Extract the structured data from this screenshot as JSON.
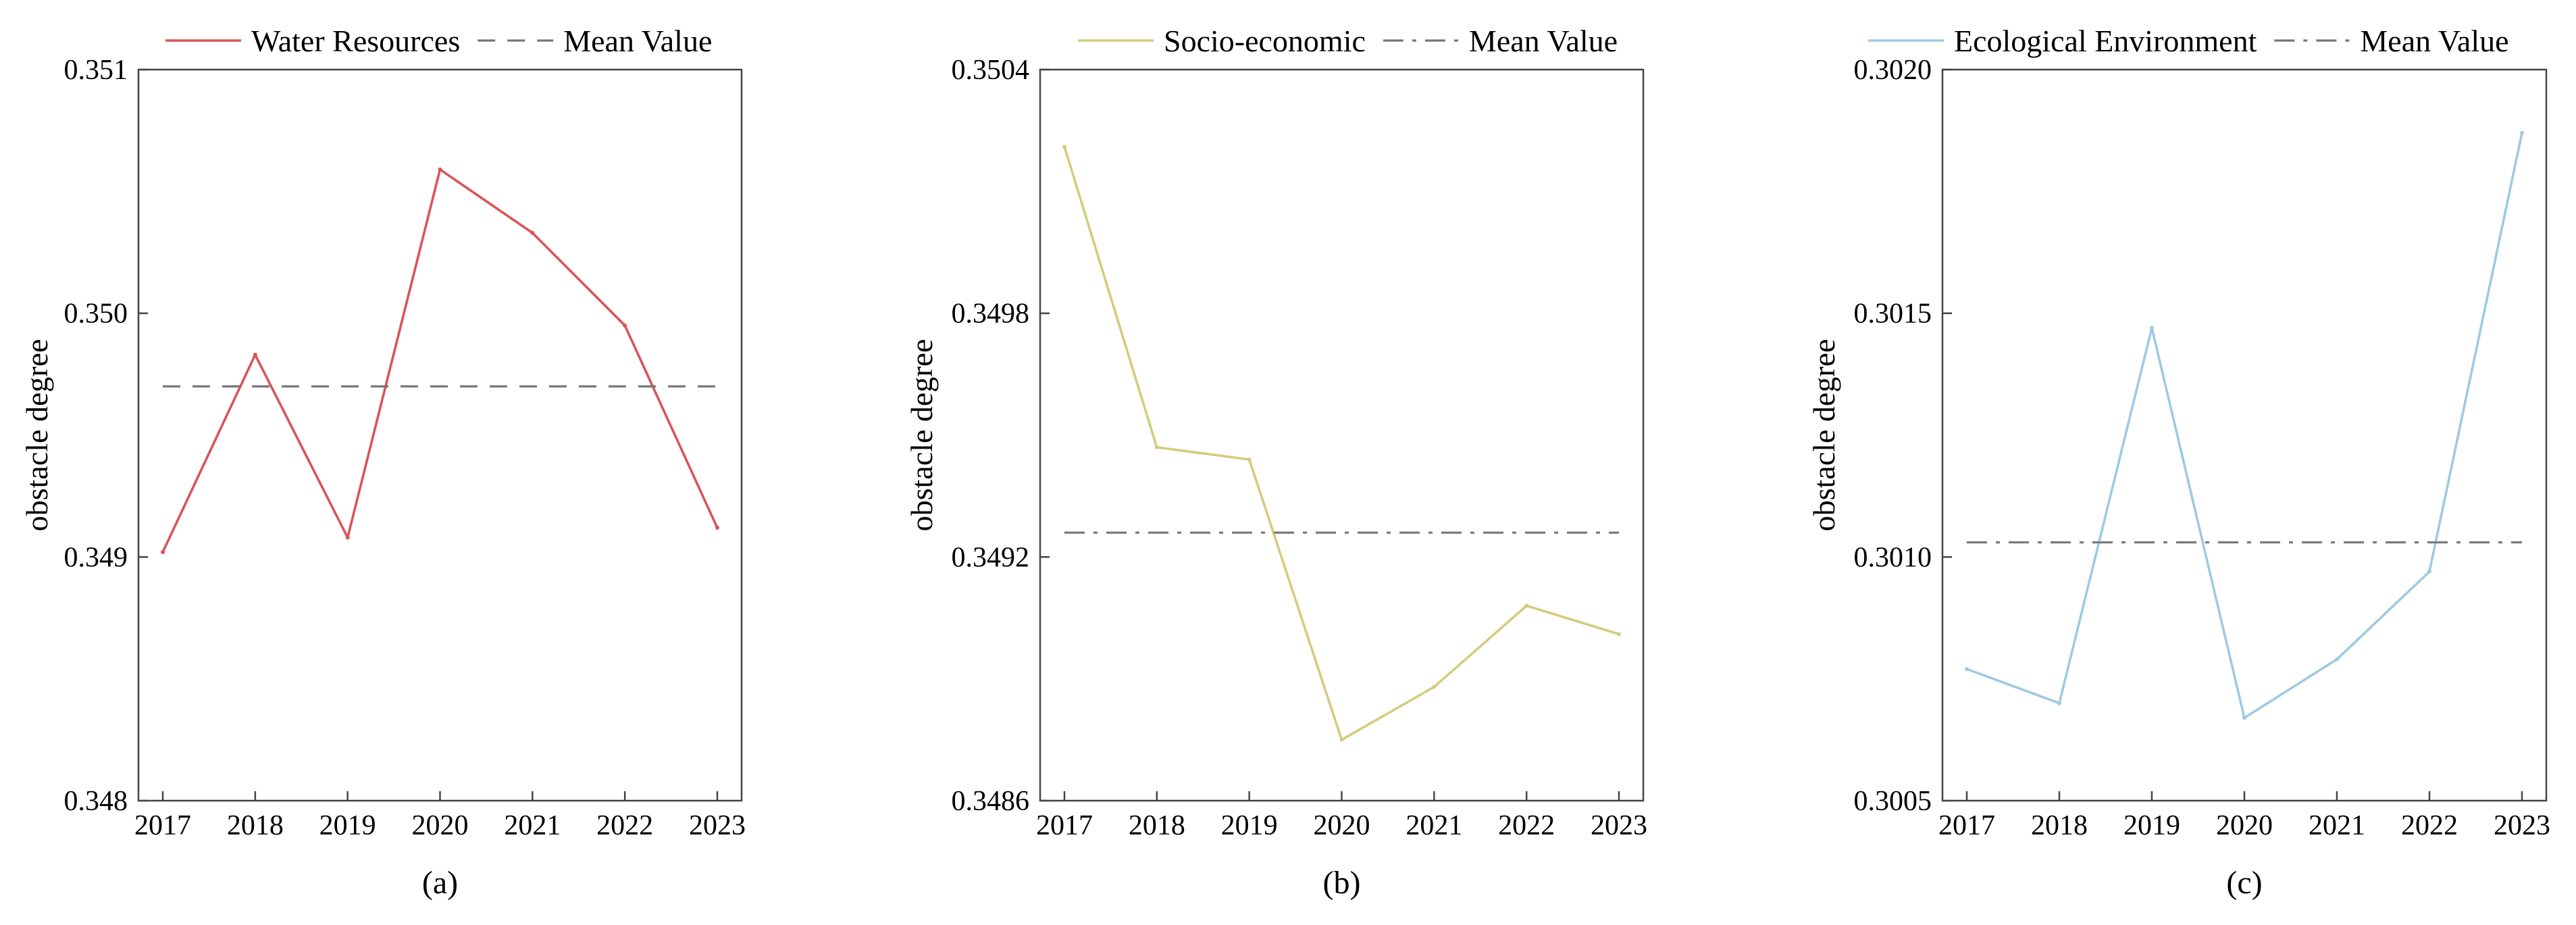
{
  "chart_data": [
    {
      "type": "line",
      "caption": "(a)",
      "ylabel": "obstacle degree",
      "xlabel": "",
      "categories": [
        "2017",
        "2018",
        "2019",
        "2020",
        "2021",
        "2022",
        "2023"
      ],
      "ylim": [
        0.348,
        0.351
      ],
      "yticks": [
        0.348,
        0.349,
        0.35,
        0.351
      ],
      "ytick_labels": [
        "0.348",
        "0.349",
        "0.350",
        "0.351"
      ],
      "legend_position": "top",
      "series": [
        {
          "name": "Water Resources",
          "style": "solid",
          "color": "#d9545a",
          "values": [
            0.34902,
            0.34983,
            0.34908,
            0.35059,
            0.35033,
            0.34995,
            0.34912
          ]
        },
        {
          "name": "Mean Value",
          "style": "dashed",
          "color": "#777777",
          "values": [
            0.3497,
            0.3497,
            0.3497,
            0.3497,
            0.3497,
            0.3497,
            0.3497
          ]
        }
      ]
    },
    {
      "type": "line",
      "caption": "(b)",
      "ylabel": "obstacle degree",
      "xlabel": "",
      "categories": [
        "2017",
        "2018",
        "2019",
        "2020",
        "2021",
        "2022",
        "2023"
      ],
      "ylim": [
        0.3486,
        0.3504
      ],
      "yticks": [
        0.3486,
        0.3492,
        0.3498,
        0.3504
      ],
      "ytick_labels": [
        "0.3486",
        "0.3492",
        "0.3498",
        "0.3504"
      ],
      "legend_position": "top",
      "series": [
        {
          "name": "Socio-economic",
          "style": "solid",
          "color": "#d4cc7c",
          "values": [
            0.35021,
            0.34947,
            0.34944,
            0.34875,
            0.34888,
            0.34908,
            0.34901
          ]
        },
        {
          "name": "Mean Value",
          "style": "dashdot",
          "color": "#777777",
          "values": [
            0.34926,
            0.34926,
            0.34926,
            0.34926,
            0.34926,
            0.34926,
            0.34926
          ]
        }
      ]
    },
    {
      "type": "line",
      "caption": "(c)",
      "ylabel": "obstacle degree",
      "xlabel": "",
      "categories": [
        "2017",
        "2018",
        "2019",
        "2020",
        "2021",
        "2022",
        "2023"
      ],
      "ylim": [
        0.3005,
        0.302
      ],
      "yticks": [
        0.3005,
        0.301,
        0.3015,
        0.302
      ],
      "ytick_labels": [
        "0.3005",
        "0.3010",
        "0.3015",
        "0.3020"
      ],
      "legend_position": "top",
      "series": [
        {
          "name": "Ecological Environment",
          "style": "solid",
          "color": "#9ecae1",
          "values": [
            0.30077,
            0.3007,
            0.30147,
            0.30067,
            0.30079,
            0.30097,
            0.30187
          ]
        },
        {
          "name": "Mean Value",
          "style": "dashdot",
          "color": "#777777",
          "values": [
            0.30103,
            0.30103,
            0.30103,
            0.30103,
            0.30103,
            0.30103,
            0.30103
          ]
        }
      ]
    }
  ]
}
